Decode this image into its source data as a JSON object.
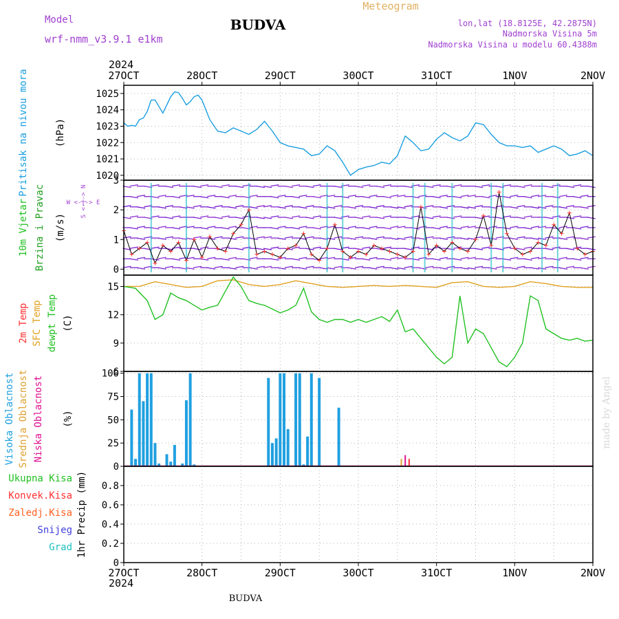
{
  "header": {
    "model_label": "Model",
    "model_name": "wrf-nmm_v3.9.1 e1km",
    "title": "BUDVA",
    "meteogram": "Meteogram",
    "lonlat": "lon,lat (18.8125E, 42.2875N)",
    "elevation": "Nadmorska Visina 5m",
    "model_elevation": "Nadmorska Visina u modelu 60.4388m",
    "year_top": "2024",
    "year_bottom": "2024",
    "footer": "BUDVA",
    "credit": "made by Angel",
    "wind_compass": "W <-|-> E",
    "wind_compass_v": "S <-|-> N"
  },
  "colors": {
    "pressure": "#1a9ee0",
    "wind_label": "#20c020",
    "wind_label2": "#20a020",
    "temp": "#ff3030",
    "sfc_temp": "#e0a020",
    "dewpt": "#20c020",
    "cloud_high": "#20a0e0",
    "cloud_mid": "#e0a030",
    "cloud_low": "#e01090",
    "precip_total": "#20c020",
    "precip_conv": "#ff3030",
    "precip_frozen": "#ff6020",
    "snow": "#4040e0",
    "hail": "#20c0c0",
    "header_purple": "#a040d0",
    "header_gold": "#e0b060"
  },
  "chart_data": [
    {
      "type": "line",
      "panel": "pressure",
      "ylabel_main": "Pritisak na nivou mora",
      "ylabel_unit": "(hPa)",
      "x_ticks": [
        "27OCT",
        "28OCT",
        "29OCT",
        "30OCT",
        "31OCT",
        "1NOV",
        "2NOV"
      ],
      "ylim": [
        1019.7,
        1025.5
      ],
      "y_ticks": [
        "1020",
        "1021",
        "1022",
        "1023",
        "1024",
        "1025"
      ],
      "grid": true,
      "series": [
        {
          "x": [
            0,
            0.05,
            0.1,
            0.15,
            0.2,
            0.25,
            0.3,
            0.35,
            0.4,
            0.45,
            0.5,
            0.55,
            0.6,
            0.65,
            0.7,
            0.75,
            0.8,
            0.85,
            0.9,
            0.95,
            1.0,
            1.1,
            1.2,
            1.3,
            1.4,
            1.5,
            1.6,
            1.7,
            1.8,
            1.9,
            2.0,
            2.1,
            2.2,
            2.3,
            2.4,
            2.5,
            2.6,
            2.7,
            2.8,
            2.9,
            3.0,
            3.1,
            3.2,
            3.3,
            3.4,
            3.5,
            3.6,
            3.7,
            3.8,
            3.9,
            4.0,
            4.1,
            4.2,
            4.3,
            4.4,
            4.5,
            4.6,
            4.7,
            4.8,
            4.9,
            5.0,
            5.1,
            5.2,
            5.3,
            5.4,
            5.5,
            5.6,
            5.7,
            5.8,
            5.9,
            6.0
          ],
          "values": [
            1023.2,
            1023.0,
            1023.05,
            1023.0,
            1023.4,
            1023.5,
            1023.9,
            1024.6,
            1024.6,
            1024.2,
            1023.8,
            1024.3,
            1024.8,
            1025.1,
            1025.05,
            1024.7,
            1024.3,
            1024.5,
            1024.8,
            1024.9,
            1024.6,
            1023.4,
            1022.7,
            1022.6,
            1022.9,
            1022.7,
            1022.5,
            1022.8,
            1023.3,
            1022.7,
            1022.0,
            1021.8,
            1021.7,
            1021.6,
            1021.2,
            1021.3,
            1021.8,
            1021.5,
            1020.8,
            1020.0,
            1020.35,
            1020.5,
            1020.6,
            1020.8,
            1020.7,
            1021.2,
            1022.4,
            1022.0,
            1021.5,
            1021.6,
            1022.2,
            1022.6,
            1022.3,
            1022.1,
            1022.4,
            1023.2,
            1023.1,
            1022.5,
            1022.0,
            1021.8,
            1021.8,
            1021.7,
            1021.8,
            1021.4,
            1021.6,
            1021.8,
            1021.6,
            1021.2,
            1021.3,
            1021.5,
            1021.2
          ]
        }
      ]
    },
    {
      "type": "line",
      "panel": "wind",
      "ylabel_main": "10m Vjetar",
      "ylabel_sub": "Brzina i Pravac",
      "ylabel_unit": "(m/s)",
      "ylim": [
        -0.2,
        3.0
      ],
      "y_ticks": [
        "0",
        "1",
        "2",
        "3"
      ],
      "grid": true,
      "series": [
        {
          "x": [
            0,
            0.1,
            0.2,
            0.3,
            0.4,
            0.5,
            0.6,
            0.7,
            0.8,
            0.9,
            1.0,
            1.1,
            1.2,
            1.3,
            1.4,
            1.5,
            1.6,
            1.7,
            1.8,
            1.9,
            2.0,
            2.1,
            2.2,
            2.3,
            2.4,
            2.5,
            2.6,
            2.7,
            2.8,
            2.9,
            3.0,
            3.1,
            3.2,
            3.3,
            3.4,
            3.5,
            3.6,
            3.7,
            3.8,
            3.9,
            4.0,
            4.1,
            4.2,
            4.3,
            4.4,
            4.5,
            4.6,
            4.7,
            4.8,
            4.9,
            5.0,
            5.1,
            5.2,
            5.3,
            5.4,
            5.5,
            5.6,
            5.7,
            5.8,
            5.9,
            6.0
          ],
          "values": [
            1.3,
            0.5,
            0.7,
            0.9,
            0.2,
            0.8,
            0.6,
            0.9,
            0.3,
            1.0,
            0.4,
            1.1,
            0.7,
            0.6,
            1.2,
            1.5,
            2.0,
            0.5,
            0.6,
            0.5,
            0.4,
            0.7,
            0.8,
            1.2,
            0.5,
            0.3,
            0.7,
            1.5,
            0.6,
            0.4,
            0.6,
            0.5,
            0.8,
            0.7,
            0.6,
            0.5,
            0.4,
            0.6,
            2.1,
            0.5,
            0.8,
            0.6,
            0.9,
            0.7,
            0.6,
            1.0,
            1.8,
            0.8,
            2.6,
            1.2,
            0.7,
            0.5,
            0.6,
            0.9,
            0.8,
            1.5,
            1.2,
            1.9,
            0.7,
            0.5,
            0.6
          ]
        }
      ]
    },
    {
      "type": "line",
      "panel": "temperature",
      "ylabel_main": "2m Temp",
      "ylabel_sub": "SFC Temp",
      "ylabel_sub2": "dewpt Temp",
      "ylabel_unit": "(C)",
      "ylim": [
        6,
        16.2
      ],
      "y_ticks": [
        "6",
        "9",
        "12",
        "15"
      ],
      "grid": true,
      "series": [
        {
          "name": "SFC Temp",
          "x": [
            0,
            0.2,
            0.4,
            0.6,
            0.8,
            1.0,
            1.2,
            1.4,
            1.6,
            1.8,
            2.0,
            2.2,
            2.4,
            2.6,
            2.8,
            3.0,
            3.2,
            3.4,
            3.6,
            3.8,
            4.0,
            4.2,
            4.4,
            4.6,
            4.8,
            5.0,
            5.2,
            5.4,
            5.6,
            5.8,
            6.0
          ],
          "values": [
            15.0,
            15.0,
            15.5,
            15.2,
            14.9,
            15.0,
            15.6,
            15.7,
            15.2,
            15.0,
            15.2,
            15.6,
            15.3,
            15.0,
            14.9,
            15.0,
            15.1,
            15.0,
            15.1,
            15.0,
            14.9,
            15.4,
            15.5,
            15.0,
            14.9,
            15.0,
            15.5,
            15.3,
            15.0,
            14.9,
            14.9
          ]
        },
        {
          "name": "dewpt Temp",
          "x": [
            0,
            0.15,
            0.3,
            0.4,
            0.5,
            0.6,
            0.7,
            0.8,
            0.9,
            1.0,
            1.1,
            1.2,
            1.3,
            1.4,
            1.5,
            1.6,
            1.7,
            1.8,
            1.9,
            2.0,
            2.1,
            2.2,
            2.3,
            2.4,
            2.5,
            2.6,
            2.7,
            2.8,
            2.9,
            3.0,
            3.1,
            3.2,
            3.3,
            3.4,
            3.5,
            3.6,
            3.7,
            3.8,
            3.9,
            4.0,
            4.1,
            4.2,
            4.3,
            4.4,
            4.5,
            4.6,
            4.7,
            4.8,
            4.9,
            5.0,
            5.1,
            5.2,
            5.3,
            5.4,
            5.5,
            5.6,
            5.7,
            5.8,
            5.9,
            6.0
          ],
          "values": [
            15.0,
            14.8,
            13.5,
            11.5,
            12.0,
            14.3,
            13.8,
            13.5,
            13.0,
            12.5,
            12.8,
            13.0,
            14.5,
            16.0,
            15.0,
            13.5,
            13.2,
            13.0,
            12.6,
            12.2,
            12.5,
            13.0,
            14.8,
            12.3,
            11.5,
            11.2,
            11.5,
            11.5,
            11.2,
            11.5,
            11.2,
            11.5,
            11.8,
            11.3,
            12.5,
            10.2,
            10.5,
            9.5,
            8.5,
            7.5,
            6.8,
            7.5,
            14.0,
            9.0,
            10.5,
            10.0,
            8.5,
            7.0,
            6.5,
            7.5,
            9.0,
            14.0,
            13.5,
            10.5,
            10.0,
            9.5,
            9.3,
            9.5,
            9.2,
            9.3
          ]
        }
      ]
    },
    {
      "type": "bar",
      "panel": "clouds",
      "ylabel_main": "Visoka Oblacnost",
      "ylabel_sub": "Srednja Oblacnost",
      "ylabel_sub2": "Niska Oblacnost",
      "ylabel_unit": "(%)",
      "ylim": [
        0,
        102
      ],
      "y_ticks": [
        "0",
        "25",
        "50",
        "75",
        "100"
      ],
      "grid": true,
      "series": [
        {
          "name": "Visoka Oblacnost",
          "x": [
            0.1,
            0.15,
            0.2,
            0.25,
            0.3,
            0.35,
            0.4,
            0.45,
            0.55,
            0.6,
            0.65,
            0.75,
            0.8,
            0.85,
            0.9,
            1.85,
            1.9,
            1.95,
            2.0,
            2.05,
            2.1,
            2.2,
            2.25,
            2.3,
            2.35,
            2.4,
            2.5,
            2.75
          ],
          "values": [
            61,
            8,
            100,
            70,
            100,
            100,
            25,
            3,
            13,
            5,
            23,
            3,
            71,
            100,
            2,
            95,
            25,
            30,
            100,
            100,
            40,
            100,
            100,
            2,
            32,
            100,
            95,
            63
          ]
        }
      ]
    },
    {
      "type": "bar",
      "panel": "precip",
      "ylabel_main": "Ukupna Kisa",
      "ylabel_sub": "Konvek.Kisa",
      "ylabel_sub2": "Zaledj.Kisa",
      "ylabel_sub3": "Snijeg",
      "ylabel_sub4": "Grad",
      "ylabel_unit": "1hr Precip (mm)",
      "ylim": [
        0,
        1.0
      ],
      "y_ticks": [
        "0",
        "0.2",
        "0.4",
        "0.6",
        "0.8"
      ],
      "grid": true,
      "series": [
        {
          "name": "Ukupna Kisa",
          "values": []
        }
      ]
    }
  ]
}
